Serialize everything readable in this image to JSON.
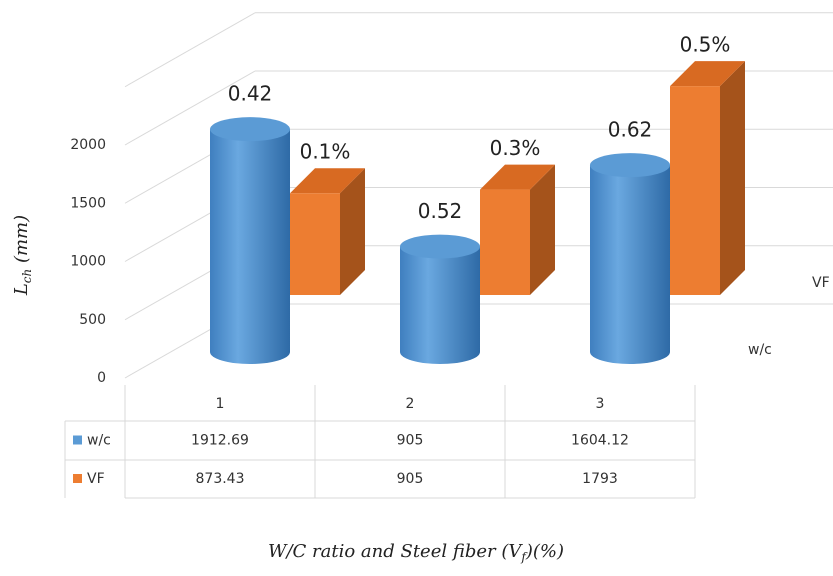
{
  "chart_data": {
    "type": "bar3d",
    "y_label": {
      "base": "L",
      "subscript": "ch",
      "suffix": " (mm)"
    },
    "x_label": {
      "prefix": "W/C ratio  and  Steel fiber (V",
      "subscript": "f",
      "suffix": ")(%)"
    },
    "categories": [
      "1",
      "2",
      "3"
    ],
    "series": [
      {
        "name": "w/c",
        "color": "#5b9bd5",
        "shape": "cylinder",
        "values": [
          1912.69,
          905,
          1604.12
        ],
        "annotations": [
          "0.42",
          "0.52",
          "0.62"
        ]
      },
      {
        "name": "VF",
        "color": "#ed7d31",
        "shape": "box",
        "values": [
          873.43,
          905,
          1793
        ],
        "annotations": [
          "0.1%",
          "0.3%",
          "0.5%"
        ]
      }
    ],
    "ylim": [
      0,
      2500
    ],
    "yticks": [
      0,
      500,
      1000,
      1500,
      2000
    ],
    "grid": true,
    "data_table": true
  }
}
